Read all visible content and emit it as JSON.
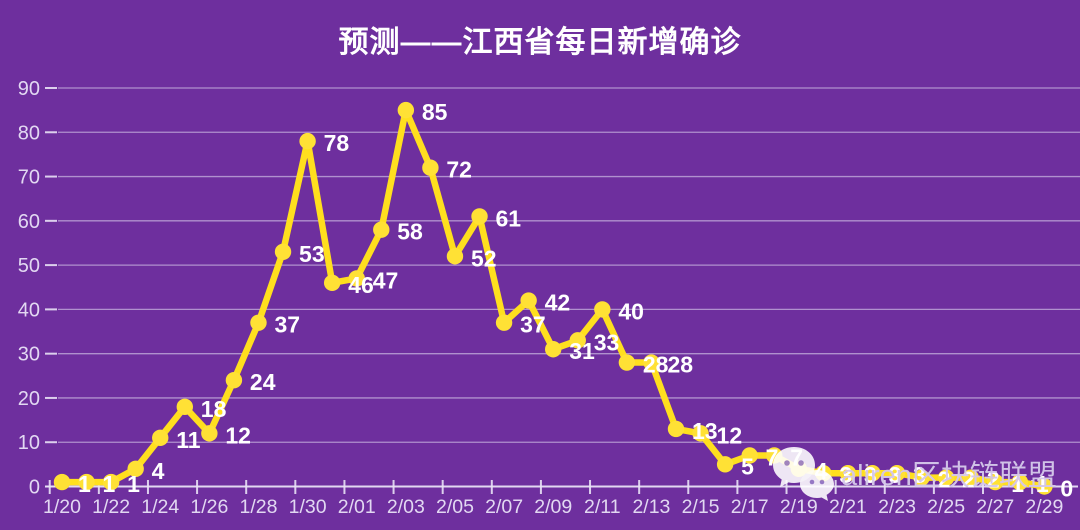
{
  "chart_data": {
    "type": "line",
    "title": "预测——江西省每日新增确诊",
    "series_name": "每日新增确诊",
    "x": [
      "1/20",
      "1/21",
      "1/22",
      "1/23",
      "1/24",
      "1/25",
      "1/26",
      "1/27",
      "1/28",
      "1/29",
      "1/30",
      "1/31",
      "2/01",
      "2/02",
      "2/03",
      "2/04",
      "2/05",
      "2/06",
      "2/07",
      "2/08",
      "2/09",
      "2/10",
      "2/11",
      "2/12",
      "2/13",
      "2/14",
      "2/15",
      "2/16",
      "2/17",
      "2/18",
      "2/19",
      "2/20",
      "2/21",
      "2/22",
      "2/23",
      "2/24",
      "2/25",
      "2/26",
      "2/27",
      "2/28",
      "2/29"
    ],
    "values": [
      1,
      1,
      1,
      4,
      11,
      18,
      12,
      24,
      37,
      53,
      78,
      46,
      47,
      58,
      85,
      72,
      52,
      61,
      37,
      42,
      31,
      33,
      40,
      28,
      28,
      13,
      12,
      5,
      7,
      7,
      4,
      3,
      3,
      3,
      3,
      2,
      2,
      2,
      1,
      1,
      0
    ],
    "point_labels": [
      "1",
      "1",
      "1",
      "4",
      "11",
      "18",
      "12",
      "24",
      "37",
      "53",
      "78",
      "46",
      "47",
      "58",
      "85",
      "72",
      "52",
      "61",
      "37",
      "42",
      "31",
      "33",
      "40",
      "28",
      "28",
      "13",
      "12",
      "5",
      "7",
      "7",
      "4",
      "3",
      "3",
      "3",
      "3",
      "2",
      "2",
      "2",
      "1",
      "1",
      "0"
    ],
    "x_axis_tick_labels": [
      "1/20",
      "1/22",
      "1/24",
      "1/26",
      "1/28",
      "1/30",
      "2/01",
      "2/03",
      "2/05",
      "2/07",
      "2/09",
      "2/11",
      "2/13",
      "2/15",
      "2/17",
      "2/19",
      "2/21",
      "2/23",
      "2/25",
      "2/27",
      "2/29"
    ],
    "y_ticks": [
      0,
      10,
      20,
      30,
      40,
      50,
      60,
      70,
      80,
      90
    ],
    "ylim": [
      0,
      90
    ],
    "grid": "horizontal",
    "legend": "none"
  },
  "watermark": {
    "text": "aliren区块链联盟",
    "icon": "wechat-icon"
  },
  "colors": {
    "background": "#6E2F9E",
    "line": "#FFDF1E",
    "marker": "#FFE135",
    "data_label": "#FFFFFF",
    "axis": "#E9E2F6",
    "axis_label": "#E2D8F2",
    "gridline": "#DCD2EE",
    "title": "#FFFFFF",
    "watermark_text": "#D5C8EA"
  }
}
